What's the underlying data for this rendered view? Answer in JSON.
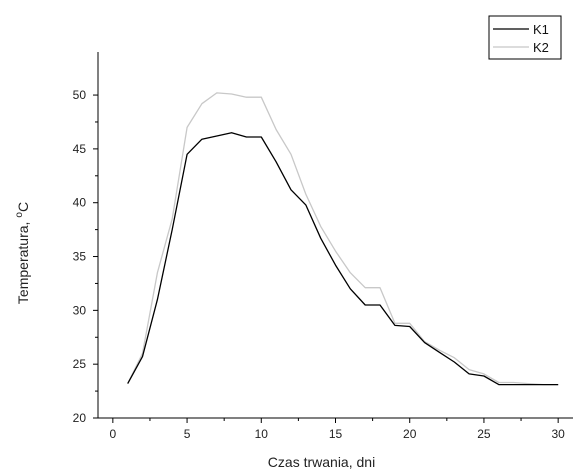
{
  "chart_data": {
    "type": "line",
    "title": "",
    "xlabel": "Czas trwania, dni",
    "ylabel": "Temperatura,",
    "ylabel_unit_sup": "o",
    "ylabel_unit": "C",
    "xlim": [
      -1,
      31
    ],
    "ylim": [
      20,
      54
    ],
    "xticks": [
      0,
      5,
      10,
      15,
      20,
      25,
      30
    ],
    "yticks": [
      20,
      25,
      30,
      35,
      40,
      45,
      50
    ],
    "grid": false,
    "legend_position": "top-right",
    "series": [
      {
        "name": "K1",
        "color": "#000000",
        "x": [
          1,
          2,
          3,
          4,
          5,
          6,
          7,
          8,
          9,
          10,
          11,
          12,
          13,
          14,
          15,
          16,
          17,
          18,
          19,
          20,
          21,
          22,
          23,
          24,
          25,
          26,
          27,
          28,
          29,
          30
        ],
        "y": [
          23.2,
          25.7,
          31.0,
          37.5,
          44.5,
          45.9,
          46.2,
          46.5,
          46.1,
          46.1,
          43.8,
          41.2,
          39.8,
          36.7,
          34.2,
          32.0,
          30.5,
          30.5,
          28.6,
          28.5,
          27.0,
          26.1,
          25.2,
          24.1,
          23.9,
          23.1,
          23.1,
          23.1,
          23.1,
          23.1
        ]
      },
      {
        "name": "K2",
        "color": "#c8c8c8",
        "x": [
          1,
          2,
          3,
          4,
          5,
          6,
          7,
          8,
          9,
          10,
          11,
          12,
          13,
          14,
          15,
          16,
          17,
          18,
          19,
          20,
          21,
          22,
          23,
          24,
          25,
          26,
          27,
          28,
          29,
          30
        ],
        "y": [
          23.2,
          26.0,
          33.5,
          38.5,
          47.0,
          49.2,
          50.2,
          50.1,
          49.8,
          49.8,
          46.8,
          44.5,
          40.8,
          37.8,
          35.5,
          33.5,
          32.1,
          32.1,
          28.8,
          28.8,
          27.1,
          26.3,
          25.6,
          24.5,
          24.1,
          23.3,
          23.3,
          23.2,
          23.1,
          23.1
        ]
      }
    ]
  }
}
